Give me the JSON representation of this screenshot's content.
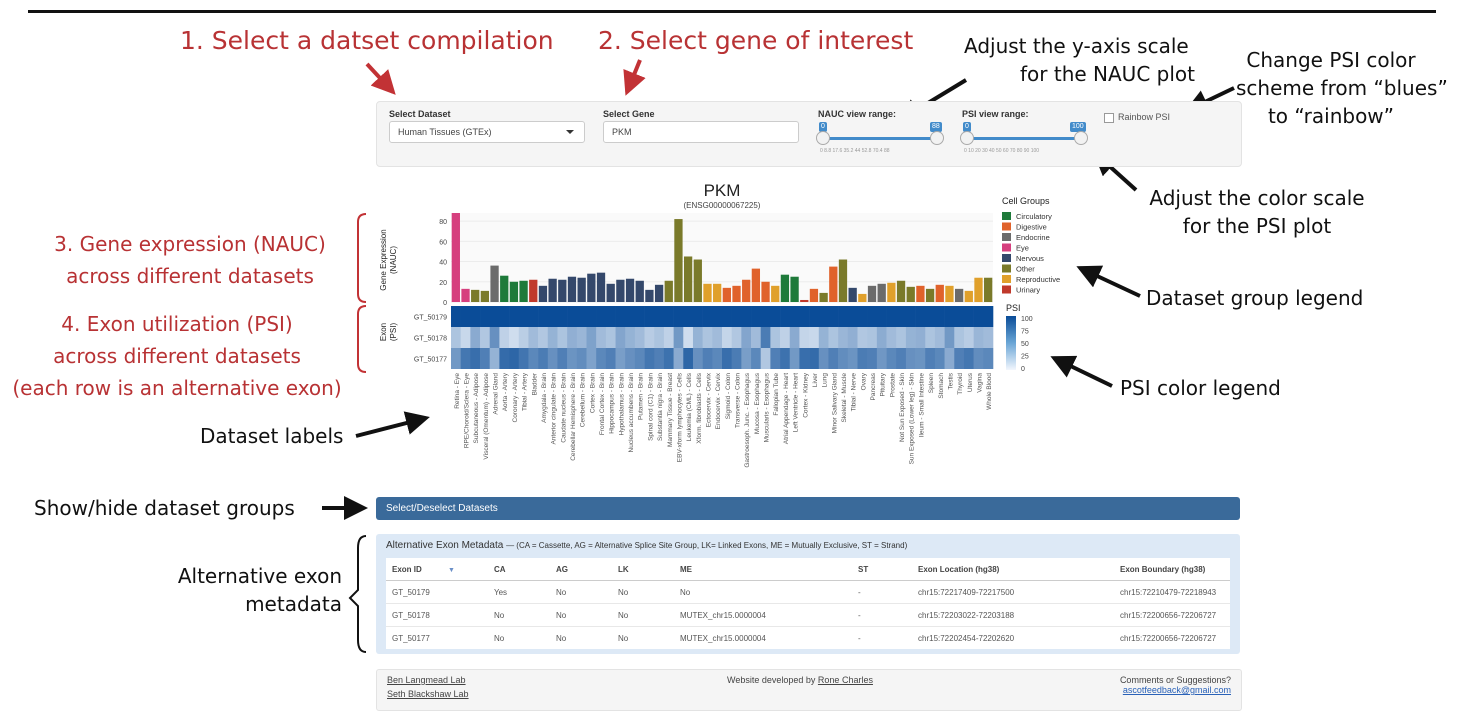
{
  "annotations": {
    "step1": "1. Select a datset compilation",
    "step2": "2. Select gene of interest",
    "yaxis_line1": "Adjust the y-axis scale",
    "yaxis_line2": "for the NAUC plot",
    "color_line1": "Change PSI color",
    "color_line2": "scheme from “blues”",
    "color_line3": "to “rainbow”",
    "colorscale_line1": "Adjust the color scale",
    "colorscale_line2": "for the PSI plot",
    "step3_line1": "3. Gene expression (NAUC)",
    "step3_line2": "across different datasets",
    "step4_line1": "4. Exon utilization (PSI)",
    "step4_line2": "across different datasets",
    "step4_line3": "(each row is an alternative exon)",
    "group_legend": "Dataset group legend",
    "psi_legend": "PSI color legend",
    "dataset_labels": "Dataset labels",
    "showhide": "Show/hide dataset groups",
    "altexon_line1": "Alternative exon",
    "altexon_line2": "metadata"
  },
  "controls": {
    "dataset_label": "Select Dataset",
    "dataset_value": "Human Tissues (GTEx)",
    "gene_label": "Select Gene",
    "gene_value": "PKM",
    "nauc_label": "NAUC view range:",
    "nauc_min": "0",
    "nauc_max": "88",
    "nauc_ticks": "0   8.8  17.6      35.2  44  52.8      70.4      88",
    "psi_label": "PSI view range:",
    "psi_min": "0",
    "psi_max": "100",
    "psi_ticks": "0   10   20   30   40   50   60   70   80   90  100",
    "rainbow_label": "Rainbow PSI"
  },
  "colors": {
    "annotation_red": "#b83234",
    "bar_blue": "#3a6a9a",
    "Circulatory": "#1e7a3a",
    "Digestive": "#e0622b",
    "Endocrine": "#6b6b6b",
    "Eye": "#d63f7e",
    "Nervous": "#34486b",
    "Other": "#7a7a2a",
    "Reproductive": "#e0a02b",
    "Urinary": "#c0392b"
  },
  "chart_data": {
    "type": "bar",
    "title": "PKM",
    "subtitle": "(ENSG00000067225)",
    "ylabel_line1": "Gene Expression",
    "ylabel_line2": "(NAUC)",
    "heatmap_ylabel_line1": "Exon",
    "heatmap_ylabel_line2": "(PSI)",
    "ylim": [
      0,
      88
    ],
    "yticks": [
      "0",
      "20",
      "40",
      "60",
      "80"
    ],
    "categories": [
      "Retina - Eye",
      "RPE/Choroid/Sclera - Eye",
      "Subcutaneous - Adipose",
      "Visceral (Omentum) - Adipose",
      "Adrenal Gland",
      "Aorta - Artery",
      "Coronary - Artery",
      "Tibial - Artery",
      "Bladder",
      "Amygdala - Brain",
      "Anterior cingulate - Brain",
      "Caudate nucleus - Brain",
      "Cerebellar Hemisphere - Brain",
      "Cerebellum - Brain",
      "Cortex - Brain",
      "Frontal Cortex - Brain",
      "Hippocampus - Brain",
      "Hypothalamus - Brain",
      "Nucleus accumbens - Brain",
      "Putamen - Brain",
      "Spinal cord (C1) - Brain",
      "Substantia nigra - Brain",
      "Mammary Tissue - Breast",
      "EBV-xform lymphocytes - Cells",
      "Leukemia (CML) - Cells",
      "Xform. fibroblasts - Cells",
      "Ectocervix - Cervix",
      "Endocervix - Cervix",
      "Sigmoid - Colon",
      "Transverse - Colon",
      "Gastroesoph. Junc. - Esophagus",
      "Mucosa - Esophagus",
      "Muscularis - Esophagus",
      "Fallopian Tube",
      "Atrial Appendage - Heart",
      "Left Ventricle - Heart",
      "Cortex - Kidney",
      "Liver",
      "Lung",
      "Minor Salivary Gland",
      "Skeletal - Muscle",
      "Tibial - Nerve",
      "Ovary",
      "Pancreas",
      "Pituitary",
      "Prostate",
      "Not Sun Exposed - Skin",
      "Sun Exposed (Lower leg) - Skin",
      "Ileum - Small Intestine",
      "Spleen",
      "Stomach",
      "Testis",
      "Thyroid",
      "Uterus",
      "Vagina",
      "Whole Blood"
    ],
    "groups": [
      "Eye",
      "Eye",
      "Other",
      "Other",
      "Endocrine",
      "Circulatory",
      "Circulatory",
      "Circulatory",
      "Urinary",
      "Nervous",
      "Nervous",
      "Nervous",
      "Nervous",
      "Nervous",
      "Nervous",
      "Nervous",
      "Nervous",
      "Nervous",
      "Nervous",
      "Nervous",
      "Nervous",
      "Nervous",
      "Other",
      "Other",
      "Other",
      "Other",
      "Reproductive",
      "Reproductive",
      "Digestive",
      "Digestive",
      "Digestive",
      "Digestive",
      "Digestive",
      "Reproductive",
      "Circulatory",
      "Circulatory",
      "Urinary",
      "Digestive",
      "Other",
      "Digestive",
      "Other",
      "Nervous",
      "Reproductive",
      "Endocrine",
      "Endocrine",
      "Reproductive",
      "Other",
      "Other",
      "Digestive",
      "Other",
      "Digestive",
      "Reproductive",
      "Endocrine",
      "Reproductive",
      "Reproductive",
      "Other"
    ],
    "values": [
      88,
      13,
      12,
      11,
      36,
      26,
      20,
      21,
      22,
      16,
      23,
      22,
      25,
      24,
      28,
      29,
      18,
      22,
      23,
      21,
      12,
      17,
      21,
      82,
      45,
      42,
      18,
      18,
      14,
      16,
      22,
      33,
      20,
      16,
      27,
      25,
      2,
      13,
      9,
      35,
      42,
      14,
      8,
      16,
      18,
      19,
      21,
      15,
      16,
      13,
      17,
      16,
      13,
      11,
      24,
      24
    ],
    "legend_title": "Cell Groups",
    "legend": [
      "Circulatory",
      "Digestive",
      "Endocrine",
      "Eye",
      "Nervous",
      "Other",
      "Reproductive",
      "Urinary"
    ],
    "heatmap_rows": [
      "GT_50179",
      "GT_50178",
      "GT_50177"
    ],
    "psi_legend_title": "PSI",
    "psi_ticks": [
      "100",
      "75",
      "50",
      "25",
      "0"
    ]
  },
  "panel": {
    "select_deselect": "Select/Deselect Datasets",
    "meta_title": "Alternative Exon Metadata",
    "meta_note": "— (CA = Cassette, AG = Alternative Splice Site Group, LK= Linked Exons, ME = Mutually Exclusive, ST = Strand)",
    "headers": {
      "exon_id": "Exon ID",
      "ca": "CA",
      "ag": "AG",
      "lk": "LK",
      "me": "ME",
      "st": "ST",
      "loc": "Exon Location (hg38)",
      "bound": "Exon Boundary (hg38)"
    },
    "rows": [
      {
        "exon_id": "GT_50179",
        "ca": "Yes",
        "ag": "No",
        "lk": "No",
        "me": "No",
        "st": "-",
        "loc": "chr15:72217409-72217500",
        "bound": "chr15:72210479-72218943"
      },
      {
        "exon_id": "GT_50178",
        "ca": "No",
        "ag": "No",
        "lk": "No",
        "me": "MUTEX_chr15.0000004",
        "st": "-",
        "loc": "chr15:72203022-72203188",
        "bound": "chr15:72200656-72206727"
      },
      {
        "exon_id": "GT_50177",
        "ca": "No",
        "ag": "No",
        "lk": "No",
        "me": "MUTEX_chr15.0000004",
        "st": "-",
        "loc": "chr15:72202454-72202620",
        "bound": "chr15:72200656-72206727"
      }
    ]
  },
  "footer": {
    "lab1": "Ben Langmead Lab",
    "lab2": "Seth Blackshaw Lab",
    "dev_text": "Website developed by",
    "dev_name": "Rone Charles",
    "comments": "Comments or Suggestions?",
    "email": "ascotfeedback@gmail.com"
  }
}
